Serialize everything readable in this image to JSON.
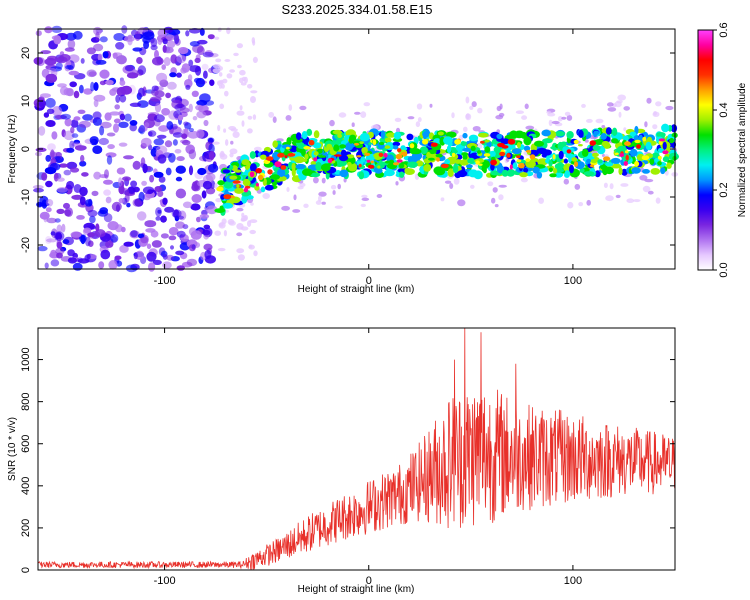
{
  "title": "S233.2025.334.01.58.E15",
  "colors": {
    "snr_line": "#e8302a",
    "axis": "#000000"
  },
  "chart_data": [
    {
      "type": "heatmap",
      "name": "spectrogram",
      "xlabel": "Height of straight line (km)",
      "ylabel": "Frequency (Hz)",
      "xlim": [
        -162,
        150
      ],
      "ylim": [
        -25,
        25
      ],
      "xticks": [
        -100,
        0,
        100
      ],
      "yticks": [
        -20,
        -10,
        0,
        10,
        20
      ],
      "noise_region_x": [
        -162,
        -75
      ],
      "signal_start_x": -73,
      "signal_trend": [
        {
          "x": -73,
          "f": -9
        },
        {
          "x": -50,
          "f": -4
        },
        {
          "x": -30,
          "f": -1
        },
        {
          "x": 0,
          "f": -1
        },
        {
          "x": 50,
          "f": -1
        },
        {
          "x": 100,
          "f": -1
        },
        {
          "x": 150,
          "f": 0
        }
      ],
      "band_halfwidth_hz": 5,
      "colorbar": {
        "label": "Normalized spectral amplitude",
        "range": [
          0.0,
          0.6
        ],
        "ticks": [
          "0.0",
          "0.2",
          "0.4",
          "0.6"
        ],
        "stops": [
          "#ffffff",
          "#e6c8ff",
          "#b074f0",
          "#7a26e0",
          "#3a00f0",
          "#0000ff",
          "#0096ff",
          "#00f0f0",
          "#00f080",
          "#00e000",
          "#a0f000",
          "#ffff00",
          "#ffa000",
          "#ff3000",
          "#ff0000",
          "#ff00a0",
          "#ff40ff"
        ]
      }
    },
    {
      "type": "line",
      "name": "snr",
      "xlabel": "Height of straight line (km)",
      "ylabel": "SNR (10 * v/v)",
      "xlim": [
        -162,
        150
      ],
      "ylim": [
        0,
        1150
      ],
      "xticks": [
        -100,
        0,
        100
      ],
      "yticks": [
        0,
        200,
        400,
        600,
        800,
        1000
      ],
      "envelope": [
        {
          "x": -162,
          "base": 25,
          "amp": 15
        },
        {
          "x": -62,
          "base": 25,
          "amp": 15
        },
        {
          "x": -58,
          "base": 40,
          "amp": 40
        },
        {
          "x": -45,
          "base": 90,
          "amp": 60
        },
        {
          "x": -30,
          "base": 170,
          "amp": 90
        },
        {
          "x": -15,
          "base": 240,
          "amp": 110
        },
        {
          "x": 0,
          "base": 300,
          "amp": 130
        },
        {
          "x": 15,
          "base": 360,
          "amp": 150
        },
        {
          "x": 25,
          "base": 420,
          "amp": 190
        },
        {
          "x": 40,
          "base": 520,
          "amp": 330
        },
        {
          "x": 55,
          "base": 560,
          "amp": 360
        },
        {
          "x": 75,
          "base": 540,
          "amp": 260
        },
        {
          "x": 100,
          "base": 530,
          "amp": 220
        },
        {
          "x": 125,
          "base": 520,
          "amp": 170
        },
        {
          "x": 150,
          "base": 500,
          "amp": 140
        }
      ],
      "peak_values": [
        {
          "x": 47,
          "y": 1150
        },
        {
          "x": 55,
          "y": 1130
        },
        {
          "x": 42,
          "y": 1000
        },
        {
          "x": 72,
          "y": 980
        }
      ]
    }
  ]
}
